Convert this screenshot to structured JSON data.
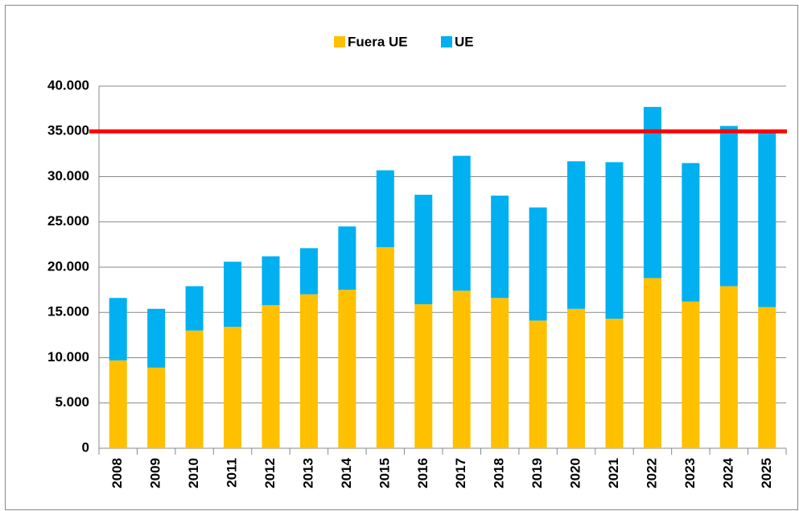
{
  "chart_data": {
    "type": "bar",
    "stacked": true,
    "categories": [
      "2008",
      "2009",
      "2010",
      "2011",
      "2012",
      "2013",
      "2014",
      "2015",
      "2016",
      "2017",
      "2018",
      "2019",
      "2020",
      "2021",
      "2022",
      "2023",
      "2024",
      "2025"
    ],
    "series": [
      {
        "name": "Fuera UE",
        "color": "#FFC000",
        "values": [
          9700,
          8900,
          13000,
          13400,
          15800,
          17000,
          17500,
          22200,
          15900,
          17400,
          16600,
          14100,
          15400,
          14300,
          18800,
          16200,
          17900,
          15600
        ]
      },
      {
        "name": "UE",
        "color": "#00B0F0",
        "values": [
          6900,
          6500,
          4900,
          7200,
          5400,
          5100,
          7000,
          8500,
          12100,
          14900,
          11300,
          12500,
          16300,
          17300,
          18900,
          15300,
          17700,
          19600
        ]
      }
    ],
    "reference_line": {
      "value": 35000,
      "color": "#FF0000"
    },
    "ylim": [
      0,
      40000
    ],
    "yticks": [
      0,
      {
        "value": 5000,
        "label": "5.000"
      },
      {
        "value": 10000,
        "label": "10.000"
      },
      {
        "value": 15000,
        "label": "15.000"
      },
      {
        "value": 20000,
        "label": "20.000"
      },
      {
        "value": 25000,
        "label": "25.000"
      },
      {
        "value": 30000,
        "label": "30.000"
      },
      {
        "value": 35000,
        "label": "35.000"
      },
      {
        "value": 40000,
        "label": "40.000"
      }
    ],
    "grid": true,
    "legend": "top"
  }
}
